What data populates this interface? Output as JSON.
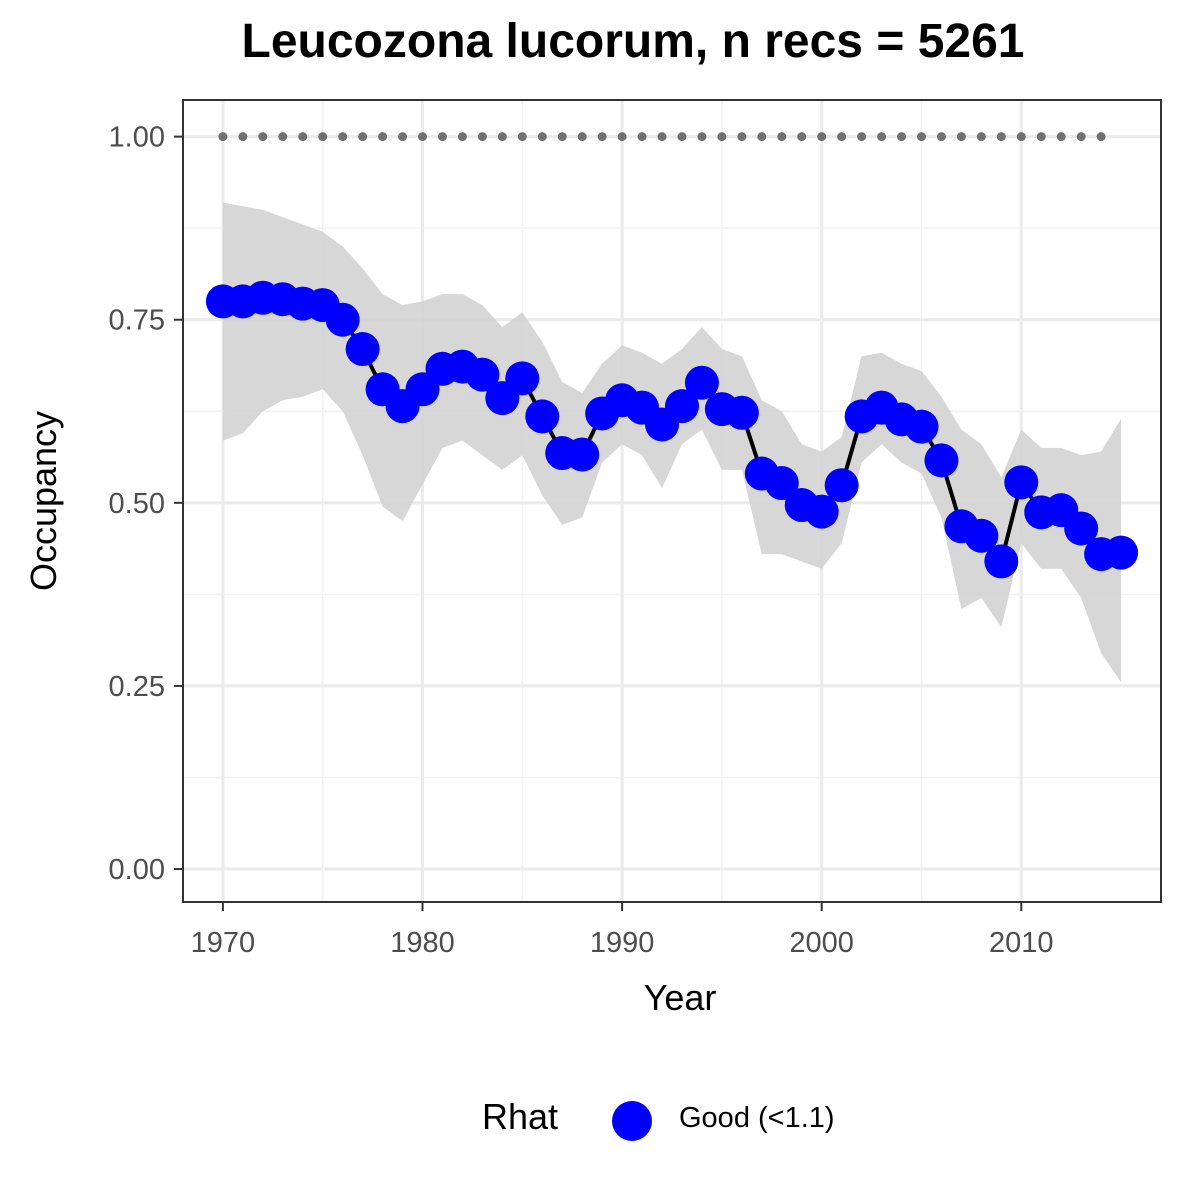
{
  "chart_data": {
    "type": "line",
    "title": "Leucozona lucorum, n recs = 5261",
    "xlabel": "Year",
    "ylabel": "Occupancy",
    "xlim": [
      1968,
      2017
    ],
    "ylim": [
      -0.045,
      1.05
    ],
    "x_ticks": [
      1970,
      1980,
      1990,
      2000,
      2010
    ],
    "x_tick_labels": [
      "1970",
      "1980",
      "1990",
      "2000",
      "2010"
    ],
    "y_ticks": [
      0,
      0.25,
      0.5,
      0.75,
      1.0
    ],
    "y_tick_labels": [
      "0.00",
      "0.25",
      "0.50",
      "0.75",
      "1.00"
    ],
    "grid": true,
    "legend_position": "bottom",
    "legend_title": "Rhat",
    "legend_entries": [
      "Good (<1.1)"
    ],
    "colors": {
      "points": "#0000ff",
      "line": "#000000",
      "ribbon": "#d3d3d3",
      "reference": "#707070"
    },
    "series": [
      {
        "name": "Good (<1.1)",
        "x": [
          1970,
          1971,
          1972,
          1973,
          1974,
          1975,
          1976,
          1977,
          1978,
          1979,
          1980,
          1981,
          1982,
          1983,
          1984,
          1985,
          1986,
          1987,
          1988,
          1989,
          1990,
          1991,
          1992,
          1993,
          1994,
          1995,
          1996,
          1997,
          1998,
          1999,
          2000,
          2001,
          2002,
          2003,
          2004,
          2005,
          2006,
          2007,
          2008,
          2009,
          2010,
          2011,
          2012,
          2013,
          2014,
          2015
        ],
        "y": [
          0.775,
          0.775,
          0.78,
          0.778,
          0.772,
          0.77,
          0.75,
          0.71,
          0.655,
          0.632,
          0.655,
          0.683,
          0.686,
          0.675,
          0.643,
          0.67,
          0.618,
          0.568,
          0.566,
          0.622,
          0.64,
          0.63,
          0.607,
          0.632,
          0.664,
          0.628,
          0.623,
          0.54,
          0.527,
          0.497,
          0.488,
          0.524,
          0.618,
          0.63,
          0.614,
          0.604,
          0.558,
          0.468,
          0.455,
          0.42,
          0.528,
          0.487,
          0.49,
          0.465,
          0.43,
          0.432
        ],
        "lower": [
          0.585,
          0.595,
          0.625,
          0.64,
          0.645,
          0.655,
          0.625,
          0.565,
          0.495,
          0.475,
          0.525,
          0.575,
          0.585,
          0.565,
          0.545,
          0.565,
          0.51,
          0.47,
          0.48,
          0.555,
          0.58,
          0.565,
          0.52,
          0.58,
          0.6,
          0.545,
          0.545,
          0.43,
          0.43,
          0.42,
          0.41,
          0.445,
          0.555,
          0.58,
          0.555,
          0.54,
          0.48,
          0.355,
          0.37,
          0.33,
          0.445,
          0.41,
          0.41,
          0.37,
          0.295,
          0.255
        ],
        "upper": [
          0.91,
          0.905,
          0.9,
          0.89,
          0.88,
          0.87,
          0.85,
          0.82,
          0.785,
          0.77,
          0.775,
          0.785,
          0.785,
          0.77,
          0.74,
          0.76,
          0.72,
          0.665,
          0.65,
          0.69,
          0.715,
          0.705,
          0.69,
          0.71,
          0.74,
          0.71,
          0.7,
          0.64,
          0.625,
          0.58,
          0.57,
          0.59,
          0.7,
          0.705,
          0.69,
          0.68,
          0.645,
          0.6,
          0.58,
          0.535,
          0.6,
          0.575,
          0.575,
          0.565,
          0.57,
          0.615
        ]
      }
    ],
    "reference_line": {
      "y": 1.0,
      "x": [
        1970,
        1971,
        1972,
        1973,
        1974,
        1975,
        1976,
        1977,
        1978,
        1979,
        1980,
        1981,
        1982,
        1983,
        1984,
        1985,
        1986,
        1987,
        1988,
        1989,
        1990,
        1991,
        1992,
        1993,
        1994,
        1995,
        1996,
        1997,
        1998,
        1999,
        2000,
        2001,
        2002,
        2003,
        2004,
        2005,
        2006,
        2007,
        2008,
        2009,
        2010,
        2011,
        2012,
        2013,
        2014
      ]
    }
  }
}
